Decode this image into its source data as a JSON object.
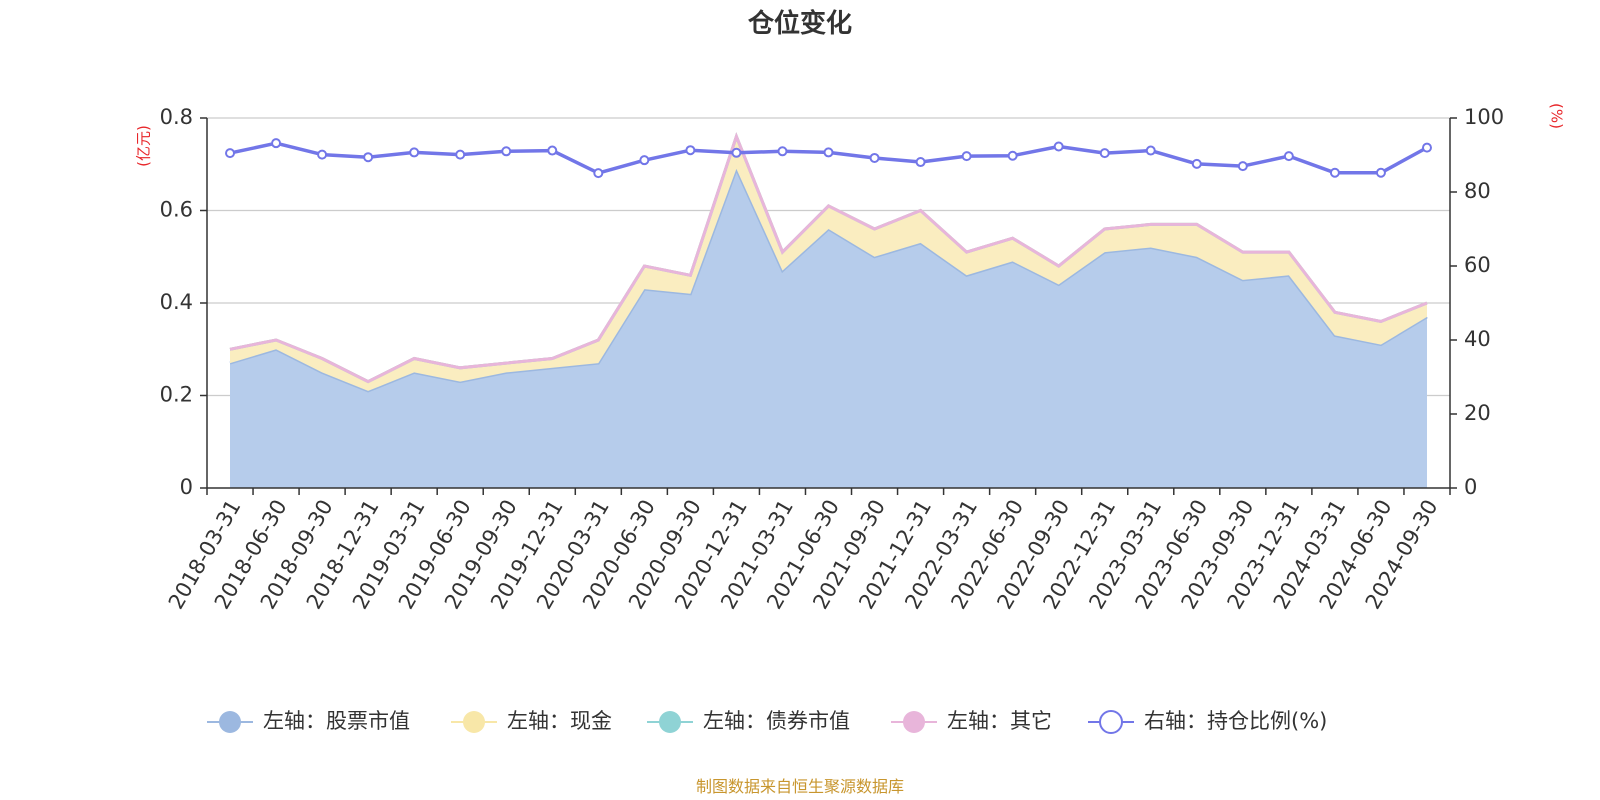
{
  "chart_data": {
    "type": "area",
    "title": "仓位变化",
    "left_axis_unit": "(亿元)",
    "right_axis_unit": "(%)",
    "ylim_left": [
      0,
      0.8
    ],
    "yticks_left": [
      0,
      0.2,
      0.4,
      0.6,
      0.8
    ],
    "ytick_labels_left": [
      "0",
      "0.2",
      "0.4",
      "0.6",
      "0.8"
    ],
    "ylim_right": [
      0,
      100
    ],
    "yticks_right": [
      0,
      20,
      40,
      60,
      80,
      100
    ],
    "ytick_labels_right": [
      "0",
      "20",
      "40",
      "60",
      "80",
      "100"
    ],
    "grid": true,
    "legend_position": "bottom",
    "categories": [
      "2018-03-31",
      "2018-06-30",
      "2018-09-30",
      "2018-12-31",
      "2019-03-31",
      "2019-06-30",
      "2019-09-30",
      "2019-12-31",
      "2020-03-31",
      "2020-06-30",
      "2020-09-30",
      "2020-12-31",
      "2021-03-31",
      "2021-06-30",
      "2021-09-30",
      "2021-12-31",
      "2022-03-31",
      "2022-06-30",
      "2022-09-30",
      "2022-12-31",
      "2023-03-31",
      "2023-06-30",
      "2023-09-30",
      "2023-12-31",
      "2024-03-31",
      "2024-06-30",
      "2024-09-30"
    ],
    "series": [
      {
        "name": "左轴：股票市值",
        "axis": "left",
        "stacked": true,
        "color": "#9cb8e0",
        "fill": "#b6cceb",
        "values": [
          0.27,
          0.3,
          0.25,
          0.21,
          0.25,
          0.23,
          0.25,
          0.26,
          0.27,
          0.43,
          0.42,
          0.69,
          0.47,
          0.56,
          0.5,
          0.53,
          0.46,
          0.49,
          0.44,
          0.51,
          0.52,
          0.5,
          0.45,
          0.46,
          0.33,
          0.31,
          0.37
        ]
      },
      {
        "name": "左轴：现金",
        "axis": "left",
        "stacked": true,
        "color": "#f8e7a8",
        "fill": "#faedc0",
        "values": [
          0.03,
          0.02,
          0.03,
          0.02,
          0.03,
          0.03,
          0.02,
          0.02,
          0.05,
          0.05,
          0.04,
          0.07,
          0.04,
          0.05,
          0.06,
          0.07,
          0.05,
          0.05,
          0.04,
          0.05,
          0.05,
          0.07,
          0.06,
          0.05,
          0.05,
          0.05,
          0.03
        ]
      },
      {
        "name": "左轴：债券市值",
        "axis": "left",
        "stacked": true,
        "color": "#8fd3d5",
        "fill": "#a9dddf",
        "values": [
          0,
          0,
          0,
          0,
          0,
          0,
          0,
          0,
          0,
          0,
          0,
          0,
          0,
          0,
          0,
          0,
          0,
          0,
          0,
          0,
          0,
          0,
          0,
          0,
          0,
          0,
          0
        ]
      },
      {
        "name": "左轴：其它",
        "axis": "left",
        "stacked": true,
        "color": "#e8b5da",
        "fill": "#f0cce6",
        "values": [
          0,
          0,
          0,
          0,
          0,
          0,
          0,
          0,
          0,
          0,
          0,
          0,
          0,
          0,
          0,
          0,
          0,
          0,
          0,
          0,
          0,
          0,
          0,
          0,
          0,
          0,
          0
        ]
      },
      {
        "name": "右轴：持仓比例(%)",
        "axis": "right",
        "stacked": false,
        "color": "#7276e8",
        "values": [
          90.5,
          93.2,
          90.1,
          89.4,
          90.7,
          90.1,
          91.0,
          91.2,
          85.1,
          88.6,
          91.3,
          90.6,
          91.0,
          90.7,
          89.2,
          88.1,
          89.7,
          89.8,
          92.3,
          90.5,
          91.2,
          87.6,
          87.0,
          89.7,
          85.2,
          85.2,
          92.0
        ]
      }
    ]
  },
  "source_text": "制图数据来自恒生聚源数据库"
}
